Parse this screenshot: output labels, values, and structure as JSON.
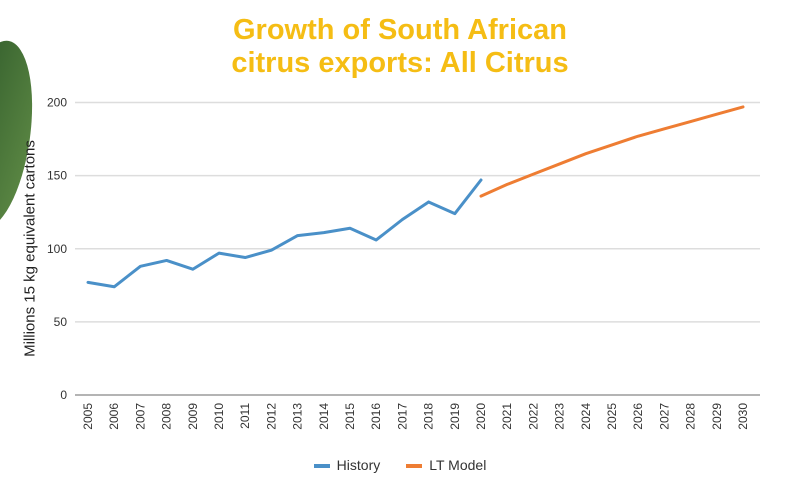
{
  "chart_data": {
    "type": "line",
    "title": "Growth of South African citrus exports: All Citrus",
    "ylabel": "Millions 15 kg equivalent cartons",
    "xlabel": "",
    "ylim": [
      0,
      200
    ],
    "yticks": [
      "0",
      "50",
      "100",
      "150",
      "200"
    ],
    "grid": true,
    "legend_position": "bottom",
    "x": [
      "2005",
      "2006",
      "2007",
      "2008",
      "2009",
      "2010",
      "2011",
      "2012",
      "2013",
      "2014",
      "2015",
      "2016",
      "2017",
      "2018",
      "2019",
      "2020",
      "2021",
      "2022",
      "2023",
      "2024",
      "2025",
      "2026",
      "2027",
      "2028",
      "2029",
      "2030"
    ],
    "series": [
      {
        "name": "History",
        "color": "#4a90c8",
        "x": [
          "2005",
          "2006",
          "2007",
          "2008",
          "2009",
          "2010",
          "2011",
          "2012",
          "2013",
          "2014",
          "2015",
          "2016",
          "2017",
          "2018",
          "2019",
          "2020"
        ],
        "values": [
          77,
          74,
          88,
          92,
          86,
          97,
          94,
          99,
          109,
          111,
          114,
          106,
          120,
          132,
          124,
          147
        ]
      },
      {
        "name": "LT Model",
        "color": "#ee7d33",
        "x": [
          "2020",
          "2021",
          "2022",
          "2023",
          "2024",
          "2025",
          "2026",
          "2027",
          "2028",
          "2029",
          "2030"
        ],
        "values": [
          136,
          144,
          151,
          158,
          165,
          171,
          177,
          182,
          187,
          192,
          197
        ]
      }
    ]
  },
  "title_lines": [
    "Growth of South African",
    "citrus exports: All Citrus"
  ]
}
